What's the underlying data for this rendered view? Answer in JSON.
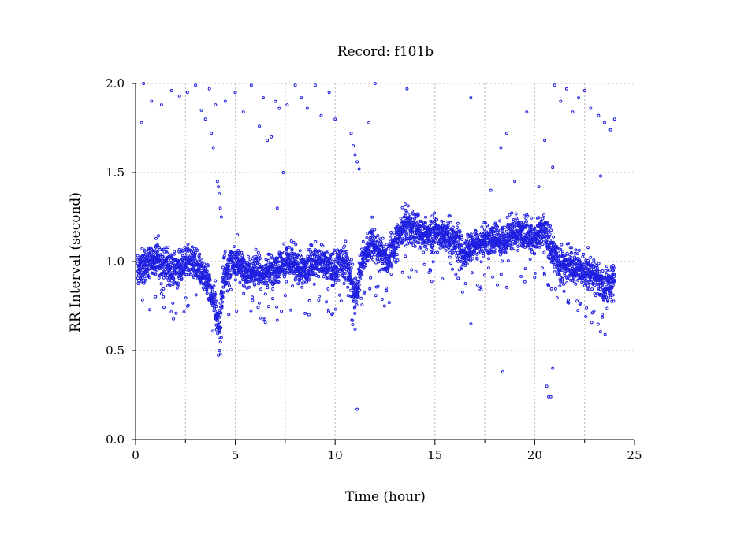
{
  "chart_data": {
    "type": "scatter",
    "title": "Record:  f101b",
    "xlabel": "Time (hour)",
    "ylabel": "RR Interval (second)",
    "xlim": [
      0,
      25
    ],
    "ylim": [
      0,
      2
    ],
    "xticks": [
      0,
      5,
      10,
      15,
      20,
      25
    ],
    "xtick_labels": [
      "0",
      "5",
      "10",
      "15",
      "20",
      "25"
    ],
    "yticks": [
      0,
      0.5,
      1,
      1.5,
      2
    ],
    "ytick_labels": [
      "0.0",
      "0.5",
      "1.0",
      "1.5",
      "2.0"
    ],
    "grid": true,
    "marker": "circle",
    "color": "#1f1fe0",
    "series": [
      {
        "trend": [
          [
            0.1,
            0.95
          ],
          [
            0.5,
            0.98
          ],
          [
            1.0,
            1.02
          ],
          [
            1.5,
            0.97
          ],
          [
            2.0,
            0.95
          ],
          [
            2.5,
            1.0
          ],
          [
            3.0,
            0.98
          ],
          [
            3.5,
            0.92
          ],
          [
            3.8,
            0.82
          ],
          [
            4.0,
            0.75
          ],
          [
            4.2,
            0.62
          ],
          [
            4.4,
            0.92
          ],
          [
            5.0,
            1.0
          ],
          [
            5.5,
            0.95
          ],
          [
            6.0,
            0.96
          ],
          [
            6.5,
            0.93
          ],
          [
            7.0,
            0.97
          ],
          [
            7.5,
            1.0
          ],
          [
            8.0,
            0.98
          ],
          [
            8.5,
            0.96
          ],
          [
            9.0,
            1.0
          ],
          [
            9.5,
            0.98
          ],
          [
            10.0,
            0.95
          ],
          [
            10.5,
            1.02
          ],
          [
            10.8,
            0.9
          ],
          [
            11.0,
            0.78
          ],
          [
            11.3,
            0.98
          ],
          [
            11.8,
            1.12
          ],
          [
            12.2,
            1.05
          ],
          [
            12.6,
            1.02
          ],
          [
            13.0,
            1.1
          ],
          [
            13.5,
            1.2
          ],
          [
            14.0,
            1.18
          ],
          [
            14.5,
            1.15
          ],
          [
            15.0,
            1.17
          ],
          [
            15.5,
            1.14
          ],
          [
            16.0,
            1.12
          ],
          [
            16.5,
            1.05
          ],
          [
            17.0,
            1.1
          ],
          [
            17.5,
            1.12
          ],
          [
            18.0,
            1.15
          ],
          [
            18.5,
            1.1
          ],
          [
            19.0,
            1.18
          ],
          [
            19.5,
            1.16
          ],
          [
            20.0,
            1.12
          ],
          [
            20.5,
            1.18
          ],
          [
            20.8,
            1.08
          ],
          [
            21.0,
            1.02
          ],
          [
            21.5,
            0.98
          ],
          [
            22.0,
            0.97
          ],
          [
            22.5,
            0.95
          ],
          [
            23.0,
            0.92
          ],
          [
            23.5,
            0.86
          ],
          [
            24.0,
            0.9
          ]
        ],
        "outliers": [
          [
            0.3,
            1.78
          ],
          [
            0.4,
            2.0
          ],
          [
            0.8,
            1.9
          ],
          [
            1.3,
            1.88
          ],
          [
            1.8,
            1.96
          ],
          [
            2.2,
            1.93
          ],
          [
            2.6,
            1.95
          ],
          [
            3.0,
            1.99
          ],
          [
            3.3,
            1.85
          ],
          [
            3.5,
            1.8
          ],
          [
            3.7,
            1.97
          ],
          [
            3.8,
            1.72
          ],
          [
            3.9,
            1.64
          ],
          [
            4.0,
            1.88
          ],
          [
            4.1,
            1.45
          ],
          [
            4.15,
            1.42
          ],
          [
            4.2,
            1.38
          ],
          [
            4.25,
            1.3
          ],
          [
            4.3,
            1.25
          ],
          [
            4.5,
            1.9
          ],
          [
            5.0,
            1.95
          ],
          [
            5.4,
            1.84
          ],
          [
            5.8,
            1.99
          ],
          [
            6.2,
            1.76
          ],
          [
            6.4,
            1.92
          ],
          [
            6.6,
            1.68
          ],
          [
            6.8,
            1.7
          ],
          [
            7.0,
            1.9
          ],
          [
            7.2,
            1.86
          ],
          [
            7.4,
            1.5
          ],
          [
            7.6,
            1.88
          ],
          [
            8.0,
            1.99
          ],
          [
            8.3,
            1.92
          ],
          [
            8.6,
            1.86
          ],
          [
            9.0,
            1.99
          ],
          [
            9.3,
            1.82
          ],
          [
            9.7,
            1.95
          ],
          [
            10.0,
            1.8
          ],
          [
            10.8,
            1.72
          ],
          [
            10.9,
            1.65
          ],
          [
            11.0,
            1.6
          ],
          [
            11.1,
            1.56
          ],
          [
            11.2,
            1.52
          ],
          [
            11.7,
            1.78
          ],
          [
            12.0,
            2.0
          ],
          [
            13.6,
            1.97
          ],
          [
            16.8,
            1.92
          ],
          [
            18.3,
            1.64
          ],
          [
            18.6,
            1.72
          ],
          [
            19.6,
            1.84
          ],
          [
            20.5,
            1.68
          ],
          [
            20.9,
            1.53
          ],
          [
            21.0,
            1.99
          ],
          [
            21.3,
            1.9
          ],
          [
            21.6,
            1.97
          ],
          [
            21.9,
            1.84
          ],
          [
            22.2,
            1.92
          ],
          [
            22.5,
            1.96
          ],
          [
            22.8,
            1.86
          ],
          [
            23.2,
            1.82
          ],
          [
            23.5,
            1.78
          ],
          [
            23.8,
            1.74
          ],
          [
            24.0,
            1.8
          ],
          [
            5.1,
            1.15
          ],
          [
            7.1,
            1.3
          ],
          [
            11.0,
            0.62
          ],
          [
            11.1,
            0.17
          ],
          [
            7.1,
            0.67
          ],
          [
            16.8,
            0.65
          ],
          [
            18.4,
            0.38
          ],
          [
            20.6,
            0.3
          ],
          [
            20.7,
            0.24
          ],
          [
            20.8,
            0.24
          ],
          [
            20.9,
            0.4
          ],
          [
            23.3,
            1.48
          ],
          [
            4.2,
            0.5
          ],
          [
            4.25,
            0.48
          ],
          [
            17.8,
            1.4
          ],
          [
            19.0,
            1.45
          ],
          [
            20.2,
            1.42
          ]
        ]
      }
    ]
  }
}
